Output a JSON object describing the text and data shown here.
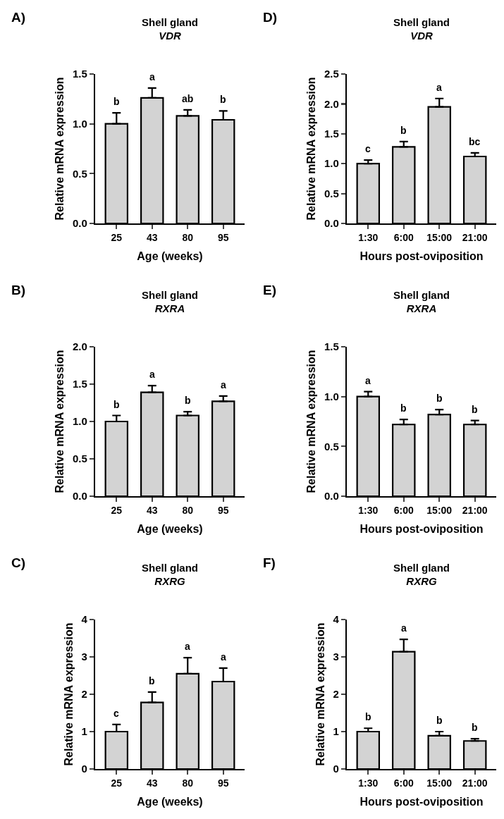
{
  "chart_data": [
    {
      "type": "bar",
      "title": "Shell gland",
      "subtitle": "VDR",
      "xlabel": "Age (weeks)",
      "ylabel": "Relative mRNA expression",
      "categories": [
        "25",
        "43",
        "80",
        "95"
      ],
      "values": [
        1.0,
        1.26,
        1.08,
        1.04
      ],
      "errors": [
        [
          1.0,
          1.11
        ],
        [
          1.26,
          1.36
        ],
        [
          1.08,
          1.14
        ],
        [
          1.04,
          1.13
        ]
      ],
      "color": "#d3d3d3",
      "ylim": [
        0,
        1.5
      ],
      "yticks": [
        {
          "value": 0,
          "label": "0.0"
        },
        {
          "value": 0.5,
          "label": "0.5"
        },
        {
          "value": 1,
          "label": "1.0"
        },
        {
          "value": 1.5,
          "label": "1.5"
        }
      ],
      "annotations": [
        "A)",
        "b",
        "a",
        "ab",
        "b"
      ]
    },
    {
      "type": "bar",
      "title": "Shell gland",
      "subtitle": "VDR",
      "xlabel": "Hours post-oviposition",
      "ylabel": "Relative mRNA expression",
      "categories": [
        "1:30",
        "6:00",
        "15:00",
        "21:00"
      ],
      "values": [
        1.0,
        1.28,
        1.95,
        1.12
      ],
      "errors": [
        [
          1.0,
          1.06
        ],
        [
          1.28,
          1.37
        ],
        [
          1.95,
          2.09
        ],
        [
          1.12,
          1.18
        ]
      ],
      "color": "#d3d3d3",
      "ylim": [
        0,
        2.5
      ],
      "yticks": [
        {
          "value": 0,
          "label": "0.0"
        },
        {
          "value": 0.5,
          "label": "0.5"
        },
        {
          "value": 1,
          "label": "1.0"
        },
        {
          "value": 1.5,
          "label": "1.5"
        },
        {
          "value": 2,
          "label": "2.0"
        },
        {
          "value": 2.5,
          "label": "2.5"
        }
      ],
      "annotations": [
        "D)",
        "c",
        "b",
        "a",
        "bc"
      ]
    },
    {
      "type": "bar",
      "title": "Shell gland",
      "subtitle": "RXRA",
      "xlabel": "Age (weeks)",
      "ylabel": "Relative mRNA expression",
      "categories": [
        "25",
        "43",
        "80",
        "95"
      ],
      "values": [
        1.0,
        1.39,
        1.08,
        1.27
      ],
      "errors": [
        [
          1.0,
          1.08
        ],
        [
          1.39,
          1.48
        ],
        [
          1.08,
          1.13
        ],
        [
          1.27,
          1.34
        ]
      ],
      "color": "#d3d3d3",
      "ylim": [
        0,
        2
      ],
      "yticks": [
        {
          "value": 0,
          "label": "0.0"
        },
        {
          "value": 0.5,
          "label": "0.5"
        },
        {
          "value": 1,
          "label": "1.0"
        },
        {
          "value": 1.5,
          "label": "1.5"
        },
        {
          "value": 2,
          "label": "2.0"
        }
      ],
      "annotations": [
        "B)",
        "b",
        "a",
        "b",
        "a"
      ]
    },
    {
      "type": "bar",
      "title": "Shell gland",
      "subtitle": "RXRA",
      "xlabel": "Hours post-oviposition",
      "ylabel": "Relative mRNA expression",
      "categories": [
        "1:30",
        "6:00",
        "15:00",
        "21:00"
      ],
      "values": [
        1.0,
        0.72,
        0.82,
        0.72
      ],
      "errors": [
        [
          1.0,
          1.05
        ],
        [
          0.72,
          0.77
        ],
        [
          0.82,
          0.87
        ],
        [
          0.72,
          0.76
        ]
      ],
      "color": "#d3d3d3",
      "ylim": [
        0,
        1.5
      ],
      "yticks": [
        {
          "value": 0,
          "label": "0.0"
        },
        {
          "value": 0.5,
          "label": "0.5"
        },
        {
          "value": 1,
          "label": "1.0"
        },
        {
          "value": 1.5,
          "label": "1.5"
        }
      ],
      "annotations": [
        "E)",
        "a",
        "b",
        "b",
        "b"
      ]
    },
    {
      "type": "bar",
      "title": "Shell gland",
      "subtitle": "RXRG",
      "xlabel": "Age (weeks)",
      "ylabel": "Relative mRNA expression",
      "categories": [
        "25",
        "43",
        "80",
        "95"
      ],
      "values": [
        1.0,
        1.78,
        2.55,
        2.34
      ],
      "errors": [
        [
          1.0,
          1.19
        ],
        [
          1.78,
          2.06
        ],
        [
          2.55,
          2.98
        ],
        [
          2.34,
          2.7
        ]
      ],
      "color": "#d3d3d3",
      "ylim": [
        0,
        4
      ],
      "yticks": [
        0,
        1,
        2,
        3,
        4
      ],
      "annotations": [
        "C)",
        "c",
        "b",
        "a",
        "a"
      ]
    },
    {
      "type": "bar",
      "title": "Shell gland",
      "subtitle": "RXRG",
      "xlabel": "Hours post-oviposition",
      "ylabel": "Relative mRNA expression",
      "categories": [
        "1:30",
        "6:00",
        "15:00",
        "21:00"
      ],
      "values": [
        1.0,
        3.14,
        0.89,
        0.75
      ],
      "errors": [
        [
          1.0,
          1.09
        ],
        [
          3.14,
          3.47
        ],
        [
          0.89,
          1.0
        ],
        [
          0.75,
          0.81
        ]
      ],
      "color": "#d3d3d3",
      "ylim": [
        0,
        4
      ],
      "yticks": [
        0,
        1,
        2,
        3,
        4
      ],
      "annotations": [
        "F)",
        "b",
        "a",
        "b",
        "b"
      ]
    }
  ]
}
